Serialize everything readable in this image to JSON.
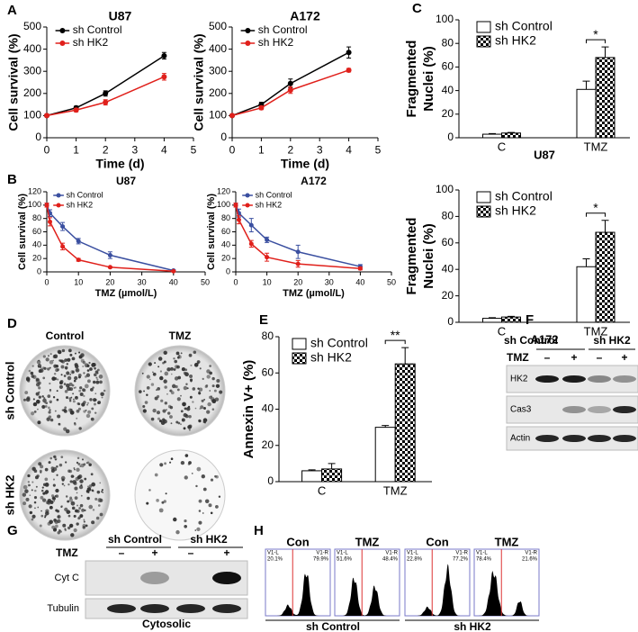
{
  "chart_data": [
    {
      "type": "line",
      "title": "U87",
      "xlabel": "Time (d)",
      "ylabel": "Cell survival (%)",
      "x": [
        0,
        1,
        2,
        4
      ],
      "xlim": [
        0,
        5
      ],
      "xticks": [
        0,
        1,
        2,
        3,
        4,
        5
      ],
      "ylim": [
        0,
        500
      ],
      "yticks": [
        0,
        100,
        200,
        300,
        400,
        500
      ],
      "series": [
        {
          "name": "sh Control",
          "color": "#000000",
          "values": [
            100,
            135,
            200,
            370
          ],
          "errors": [
            3,
            8,
            12,
            15
          ]
        },
        {
          "name": "sh HK2",
          "color": "#e0201b",
          "values": [
            100,
            125,
            160,
            275
          ],
          "errors": [
            3,
            8,
            12,
            15
          ]
        }
      ]
    },
    {
      "type": "line",
      "title": "A172",
      "xlabel": "Time (d)",
      "ylabel": "Cell survival (%)",
      "x": [
        0,
        1,
        2,
        4
      ],
      "xlim": [
        0,
        5
      ],
      "xticks": [
        0,
        1,
        2,
        3,
        4,
        5
      ],
      "ylim": [
        0,
        500
      ],
      "yticks": [
        0,
        100,
        200,
        300,
        400,
        500
      ],
      "series": [
        {
          "name": "sh Control",
          "color": "#000000",
          "values": [
            100,
            150,
            245,
            385
          ],
          "errors": [
            3,
            10,
            20,
            25
          ]
        },
        {
          "name": "sh HK2",
          "color": "#e0201b",
          "values": [
            100,
            135,
            215,
            305
          ],
          "errors": [
            3,
            8,
            15,
            8
          ]
        }
      ]
    },
    {
      "type": "line",
      "title": "U87",
      "xlabel": "TMZ (µmol/L)",
      "ylabel": "Cell survival (%)",
      "x": [
        0,
        1,
        5,
        10,
        20,
        40
      ],
      "xlim": [
        0,
        50
      ],
      "xticks": [
        0,
        10,
        20,
        30,
        40,
        50
      ],
      "ylim": [
        0,
        120
      ],
      "yticks": [
        0,
        20,
        40,
        60,
        80,
        100,
        120
      ],
      "series": [
        {
          "name": "sh Control",
          "color": "#3a4fa0",
          "values": [
            100,
            88,
            68,
            46,
            25,
            2
          ],
          "errors": [
            3,
            5,
            6,
            4,
            5,
            1
          ]
        },
        {
          "name": "sh HK2",
          "color": "#e0201b",
          "values": [
            100,
            75,
            38,
            18,
            7,
            1
          ],
          "errors": [
            3,
            6,
            5,
            2,
            1,
            1
          ]
        }
      ]
    },
    {
      "type": "line",
      "title": "A172",
      "xlabel": "TMZ (µmol/L)",
      "ylabel": "Cell survival (%)",
      "x": [
        0,
        1,
        5,
        10,
        20,
        40
      ],
      "xlim": [
        0,
        50
      ],
      "xticks": [
        0,
        10,
        20,
        30,
        40,
        50
      ],
      "ylim": [
        0,
        120
      ],
      "yticks": [
        0,
        20,
        40,
        60,
        80,
        100,
        120
      ],
      "series": [
        {
          "name": "sh Control",
          "color": "#3a4fa0",
          "values": [
            100,
            88,
            70,
            48,
            30,
            8
          ],
          "errors": [
            3,
            6,
            10,
            4,
            10,
            3
          ]
        },
        {
          "name": "sh HK2",
          "color": "#e0201b",
          "values": [
            100,
            78,
            42,
            22,
            12,
            5
          ],
          "errors": [
            3,
            6,
            5,
            6,
            5,
            2
          ]
        }
      ]
    },
    {
      "type": "bar",
      "xlabel": "U87",
      "ylabel": [
        "Fragmented",
        "Nuclei (%)"
      ],
      "categories": [
        "C",
        "TMZ"
      ],
      "ylim": [
        0,
        100
      ],
      "yticks": [
        0,
        20,
        40,
        60,
        80,
        100
      ],
      "annotation": "*",
      "series": [
        {
          "name": "sh Control",
          "color": "#ffffff",
          "values": [
            3,
            41
          ],
          "errors": [
            0.5,
            7
          ]
        },
        {
          "name": "sh HK2",
          "color": "#000000",
          "pattern": "checker",
          "values": [
            4,
            68
          ],
          "errors": [
            0.5,
            9
          ]
        }
      ]
    },
    {
      "type": "bar",
      "xlabel": "A172",
      "ylabel": [
        "Fragmented",
        "Nuclei (%)"
      ],
      "categories": [
        "C",
        "TMZ"
      ],
      "ylim": [
        0,
        100
      ],
      "yticks": [
        0,
        20,
        40,
        60,
        80,
        100
      ],
      "annotation": "*",
      "series": [
        {
          "name": "sh Control",
          "color": "#ffffff",
          "values": [
            3,
            42
          ],
          "errors": [
            0.5,
            6
          ]
        },
        {
          "name": "sh HK2",
          "color": "#000000",
          "pattern": "checker",
          "values": [
            4,
            68
          ],
          "errors": [
            0.5,
            9
          ]
        }
      ]
    },
    {
      "type": "bar",
      "ylabel": "Annexin V+ (%)",
      "categories": [
        "C",
        "TMZ"
      ],
      "ylim": [
        0,
        80
      ],
      "yticks": [
        0,
        20,
        40,
        60,
        80
      ],
      "annotation": "**",
      "series": [
        {
          "name": "sh Control",
          "color": "#ffffff",
          "values": [
            6,
            30
          ],
          "errors": [
            0.5,
            1
          ]
        },
        {
          "name": "sh HK2",
          "color": "#000000",
          "pattern": "checker",
          "values": [
            7,
            65
          ],
          "errors": [
            3,
            9
          ]
        }
      ]
    }
  ],
  "panel_labels": [
    "A",
    "B",
    "C",
    "D",
    "E",
    "F",
    "G",
    "H"
  ],
  "panel_d": {
    "columns": [
      "Control",
      "TMZ"
    ],
    "rows": [
      "sh Control",
      "sh HK2"
    ]
  },
  "panel_f": {
    "groups": [
      "sh Control",
      "sh HK2"
    ],
    "treatment": "TMZ",
    "signs": [
      "–",
      "+",
      "–",
      "+"
    ],
    "rows": [
      "HK2",
      "Cas3",
      "Actin"
    ]
  },
  "panel_g": {
    "groups": [
      "sh Control",
      "sh HK2"
    ],
    "treatment": "TMZ",
    "signs": [
      "–",
      "+",
      "–",
      "+"
    ],
    "rows": [
      "Cyt C",
      "Tubulin"
    ],
    "fraction": "Cytosolic"
  },
  "panel_h": {
    "panels": [
      {
        "title": "Con",
        "gate_left": "V1-L",
        "gate_right": "V1-R",
        "left": "20.1%",
        "right": "79.9%"
      },
      {
        "title": "TMZ",
        "gate_left": "V1-L",
        "gate_right": "V1-R",
        "left": "51.6%",
        "right": "48.4%"
      },
      {
        "title": "Con",
        "gate_left": "V1-L",
        "gate_right": "V1-R",
        "left": "22.8%",
        "right": "77.2%"
      },
      {
        "title": "TMZ",
        "gate_left": "V1-L",
        "gate_right": "V1-R",
        "left": "78.4%",
        "right": "21.6%"
      }
    ],
    "groups": [
      "sh Control",
      "sh HK2"
    ]
  }
}
